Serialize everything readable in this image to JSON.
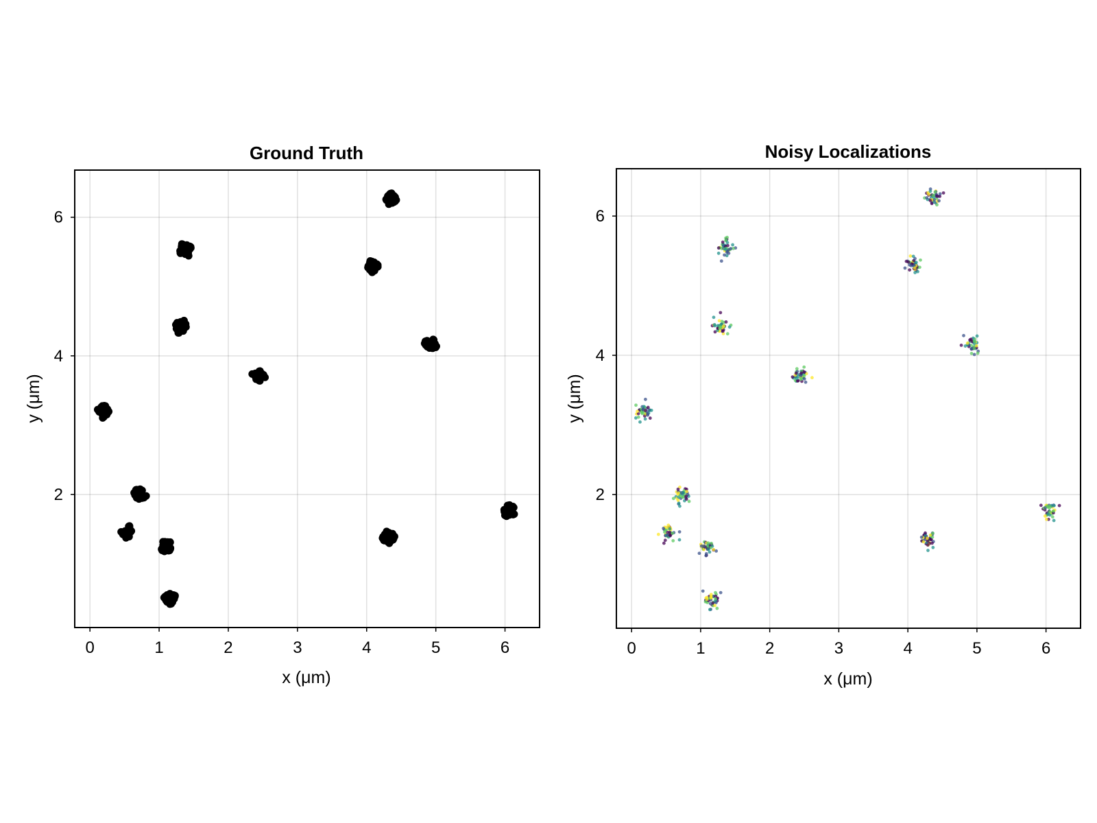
{
  "chart_data": [
    {
      "type": "scatter",
      "title": "Ground Truth",
      "xlabel": "x (μm)",
      "ylabel": "y (μm)",
      "xlim": [
        -0.22,
        6.5
      ],
      "ylim": [
        0.08,
        6.68
      ],
      "xticks": [
        "0",
        "1",
        "2",
        "3",
        "4",
        "5",
        "6"
      ],
      "yticks": [
        "2",
        "4",
        "6"
      ],
      "xtick_values": [
        0,
        1,
        2,
        3,
        4,
        5,
        6
      ],
      "ytick_values": [
        2,
        4,
        6
      ],
      "grid": true,
      "marker_color": "#000000",
      "cluster_spread_um": 0.1,
      "points_per_cluster": 28,
      "clusters": [
        {
          "x": 0.2,
          "y": 3.2
        },
        {
          "x": 0.72,
          "y": 2.01
        },
        {
          "x": 0.55,
          "y": 1.45
        },
        {
          "x": 1.1,
          "y": 1.25
        },
        {
          "x": 1.17,
          "y": 0.5
        },
        {
          "x": 1.32,
          "y": 4.42
        },
        {
          "x": 1.38,
          "y": 5.53
        },
        {
          "x": 2.45,
          "y": 3.72
        },
        {
          "x": 4.07,
          "y": 5.29
        },
        {
          "x": 4.35,
          "y": 6.26
        },
        {
          "x": 4.92,
          "y": 4.17
        },
        {
          "x": 4.32,
          "y": 1.38
        },
        {
          "x": 6.06,
          "y": 1.77
        }
      ]
    },
    {
      "type": "scatter",
      "title": "Noisy Localizations",
      "xlabel": "x (μm)",
      "ylabel": "y (μm)",
      "xlim": [
        -0.22,
        6.5
      ],
      "ylim": [
        0.08,
        6.68
      ],
      "xticks": [
        "0",
        "1",
        "2",
        "3",
        "4",
        "5",
        "6"
      ],
      "yticks": [
        "2",
        "4",
        "6"
      ],
      "xtick_values": [
        0,
        1,
        2,
        3,
        4,
        5,
        6
      ],
      "ytick_values": [
        2,
        4,
        6
      ],
      "grid": true,
      "palette": [
        "#440154",
        "#3b528b",
        "#21918c",
        "#5ec962",
        "#fde725"
      ],
      "cluster_spread_um": 0.13,
      "points_per_cluster": 40,
      "clusters": [
        {
          "x": 0.18,
          "y": 3.19
        },
        {
          "x": 0.73,
          "y": 2.0
        },
        {
          "x": 0.54,
          "y": 1.44
        },
        {
          "x": 1.1,
          "y": 1.24
        },
        {
          "x": 1.16,
          "y": 0.49
        },
        {
          "x": 1.29,
          "y": 4.42
        },
        {
          "x": 1.37,
          "y": 5.54
        },
        {
          "x": 2.43,
          "y": 3.72
        },
        {
          "x": 4.09,
          "y": 5.3
        },
        {
          "x": 4.37,
          "y": 6.27
        },
        {
          "x": 4.93,
          "y": 4.17
        },
        {
          "x": 4.3,
          "y": 1.36
        },
        {
          "x": 6.06,
          "y": 1.76
        }
      ]
    }
  ]
}
